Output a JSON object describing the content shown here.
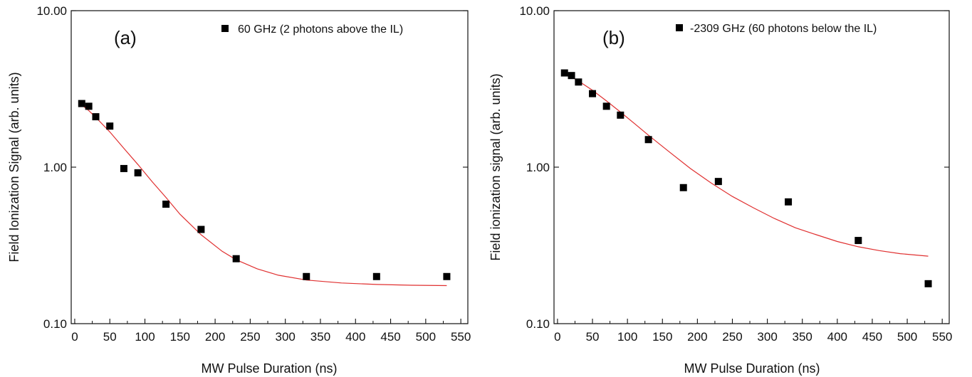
{
  "chart_data": [
    {
      "type": "scatter",
      "panel_label": "(a)",
      "xlabel": "MW Pulse Duration (ns)",
      "ylabel": "Field Ionization Signal (arb. units)",
      "xlim": [
        -5,
        560
      ],
      "ylim": [
        0.1,
        10
      ],
      "yscale": "log",
      "xticks": [
        0,
        50,
        100,
        150,
        200,
        250,
        300,
        350,
        400,
        450,
        500,
        550
      ],
      "yticks": [
        0.1,
        1,
        10
      ],
      "ytick_labels": [
        "0.10",
        "1.00",
        "10.00"
      ],
      "legend_position": "top-right",
      "series": [
        {
          "name": "60 GHz (2 photons above the IL)",
          "marker": "square",
          "color": "#000000",
          "x": [
            10,
            20,
            30,
            50,
            70,
            90,
            130,
            180,
            230,
            330,
            430,
            530
          ],
          "y": [
            2.55,
            2.45,
            2.1,
            1.83,
            0.98,
            0.92,
            0.58,
            0.4,
            0.26,
            0.2,
            0.2,
            0.2
          ]
        }
      ],
      "fit": {
        "color": "#e03030",
        "x": [
          10,
          20,
          30,
          50,
          70,
          90,
          110,
          130,
          150,
          180,
          210,
          230,
          260,
          290,
          330,
          380,
          430,
          480,
          530
        ],
        "y": [
          2.5,
          2.3,
          2.08,
          1.68,
          1.32,
          1.04,
          0.81,
          0.64,
          0.5,
          0.37,
          0.29,
          0.256,
          0.224,
          0.204,
          0.19,
          0.182,
          0.178,
          0.176,
          0.175
        ]
      }
    },
    {
      "type": "scatter",
      "panel_label": "(b)",
      "xlabel": "MW Pulse Duration (ns)",
      "ylabel": "Field ionization signal (arb. units)",
      "xlim": [
        -5,
        560
      ],
      "ylim": [
        0.1,
        10
      ],
      "yscale": "log",
      "xticks": [
        0,
        50,
        100,
        150,
        200,
        250,
        300,
        350,
        400,
        450,
        500,
        550
      ],
      "yticks": [
        0.1,
        1,
        10
      ],
      "ytick_labels": [
        "0.10",
        "1.00",
        "10.00"
      ],
      "legend_position": "top-right",
      "series": [
        {
          "name": "-2309 GHz (60 photons below the IL)",
          "marker": "square",
          "color": "#000000",
          "x": [
            10,
            20,
            30,
            50,
            70,
            90,
            130,
            180,
            230,
            330,
            430,
            530
          ],
          "y": [
            4.0,
            3.85,
            3.5,
            2.95,
            2.45,
            2.15,
            1.5,
            0.74,
            0.81,
            0.6,
            0.34,
            0.18
          ]
        }
      ],
      "fit": {
        "color": "#e03030",
        "x": [
          10,
          30,
          50,
          70,
          90,
          110,
          130,
          160,
          190,
          220,
          250,
          280,
          310,
          340,
          370,
          400,
          430,
          460,
          490,
          530
        ],
        "y": [
          4.0,
          3.55,
          3.1,
          2.65,
          2.25,
          1.9,
          1.6,
          1.25,
          0.98,
          0.79,
          0.65,
          0.55,
          0.47,
          0.41,
          0.37,
          0.335,
          0.31,
          0.293,
          0.28,
          0.27
        ]
      }
    }
  ]
}
